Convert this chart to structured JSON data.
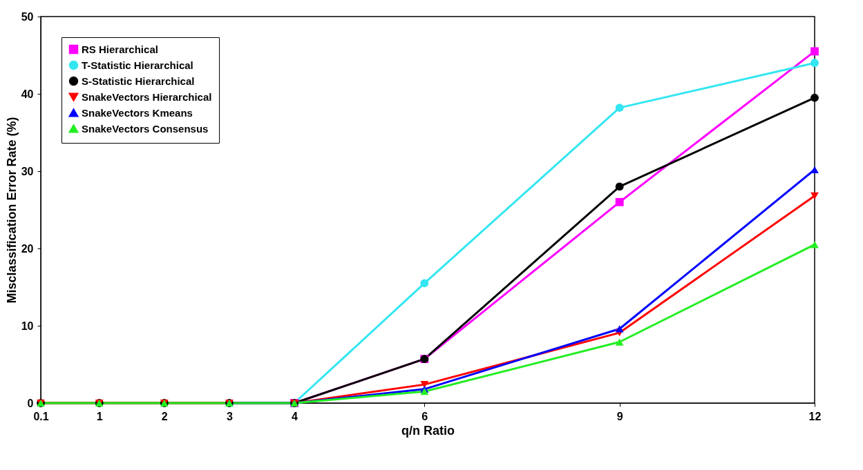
{
  "chart_data": {
    "type": "line",
    "xlabel": "q/n Ratio",
    "ylabel": "Misclassification Error Rate (%)",
    "x": [
      0.1,
      1,
      2,
      3,
      4,
      6,
      9,
      12
    ],
    "xlim": [
      0.1,
      12
    ],
    "xticks": [
      0.1,
      {
        "value": 1,
        "label": "1"
      },
      {
        "value": 2,
        "label": "2"
      },
      {
        "value": 3,
        "label": "3"
      },
      {
        "value": 4,
        "label": "4"
      },
      {
        "value": 6,
        "label": "6"
      },
      {
        "value": 9,
        "label": "9"
      },
      {
        "value": 12,
        "label": "12"
      }
    ],
    "ylim": [
      0,
      50
    ],
    "yticks": [
      0,
      10,
      20,
      30,
      40,
      50
    ],
    "grid": false,
    "legend": "top left",
    "series": [
      {
        "name": "RS Hierarchical",
        "color": "#ff00ff",
        "marker": "square",
        "values": [
          null,
          null,
          null,
          null,
          0,
          5.7,
          26,
          45.5
        ]
      },
      {
        "name": "T-Statistic Hierarchical",
        "color": "#33e6f2",
        "marker": "circle",
        "values": [
          null,
          null,
          null,
          0,
          0,
          15.5,
          38.2,
          44
        ]
      },
      {
        "name": "S-Statistic Hierarchical",
        "color": "#000000",
        "marker": "circle",
        "values": [
          0,
          0,
          0,
          0,
          0,
          5.7,
          28,
          39.5
        ]
      },
      {
        "name": "SnakeVectors Hierarchical",
        "color": "#ff0000",
        "marker": "triangle-down",
        "values": [
          0,
          0,
          0,
          0,
          0,
          2.4,
          9.1,
          26.8
        ]
      },
      {
        "name": "SnakeVectors Kmeans",
        "color": "#0000ff",
        "marker": "triangle",
        "values": [
          null,
          null,
          null,
          0,
          0,
          1.8,
          9.6,
          30.2
        ]
      },
      {
        "name": "SnakeVectors Consensus",
        "color": "#22ee22",
        "marker": "triangle",
        "values": [
          0,
          0,
          0,
          0,
          0,
          1.5,
          7.9,
          20.5
        ]
      }
    ]
  }
}
